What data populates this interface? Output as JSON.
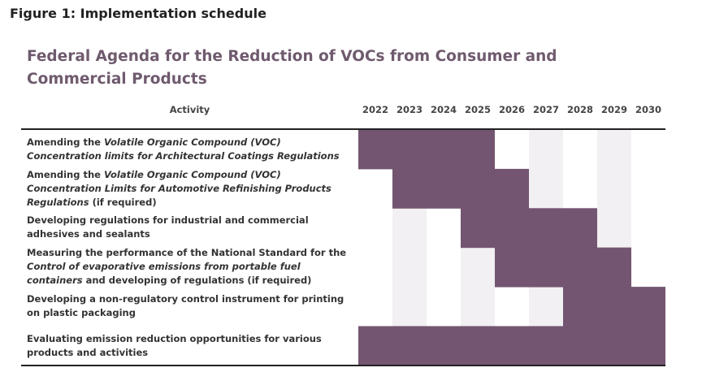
{
  "figure_title": "Figure 1: Implementation schedule",
  "chart_data": {
    "type": "table",
    "title": "Federal Agenda for the Reduction of VOCs from Consumer and Commercial Products",
    "activity_header": "Activity",
    "years": [
      "2022",
      "2023",
      "2024",
      "2025",
      "2026",
      "2027",
      "2028",
      "2029",
      "2030"
    ],
    "colors": {
      "bar": "#735571",
      "stripe": "#f2f0f2"
    },
    "rows": [
      {
        "parts": [
          {
            "t": "Amending the ",
            "i": false
          },
          {
            "t": "Volatile Organic Compound (VOC) Concentration limits for Architectural Coatings Regulations",
            "i": true
          }
        ],
        "start": "2022",
        "end": "2025"
      },
      {
        "parts": [
          {
            "t": "Amending the ",
            "i": false
          },
          {
            "t": "Volatile Organic Compound (VOC) Concentration Limits for Automotive Refinishing Products Regulations",
            "i": true
          },
          {
            "t": " (if required)",
            "i": false
          }
        ],
        "start": "2023",
        "end": "2026"
      },
      {
        "parts": [
          {
            "t": "Developing regulations for industrial and commercial adhesives and sealants",
            "i": false
          }
        ],
        "start": "2025",
        "end": "2028"
      },
      {
        "parts": [
          {
            "t": "Measuring the performance of the National Standard for the ",
            "i": false
          },
          {
            "t": "Control of evaporative emissions from portable fuel containers",
            "i": true
          },
          {
            "t": " and developing of regulations (if required)",
            "i": false
          }
        ],
        "start": "2026",
        "end": "2029"
      },
      {
        "parts": [
          {
            "t": "Developing a non-regulatory control instrument for printing on plastic packaging",
            "i": false
          }
        ],
        "start": "2028",
        "end": "2030"
      },
      {
        "parts": [
          {
            "t": "Evaluating emission reduction opportunities for various products and activities",
            "i": false
          }
        ],
        "start": "2022",
        "end": "2030"
      }
    ]
  }
}
